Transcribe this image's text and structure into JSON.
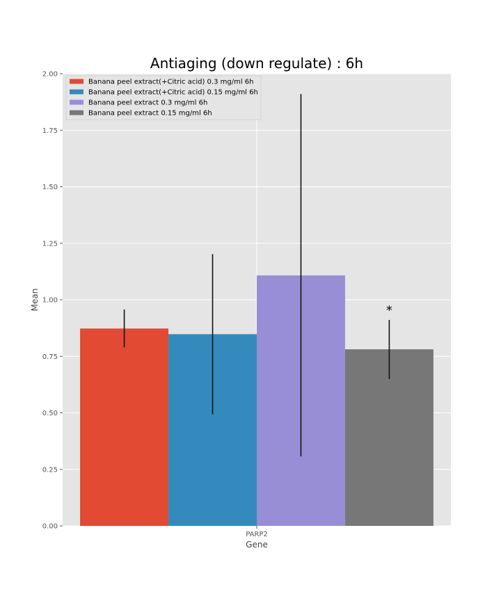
{
  "chart_data": {
    "type": "bar",
    "title": "Antiaging (down regulate) : 6h",
    "xlabel": "Gene",
    "ylabel": "Mean",
    "categories": [
      "PARP2"
    ],
    "ylim": [
      0,
      2.0
    ],
    "yticks": [
      "0.00",
      "0.25",
      "0.50",
      "0.75",
      "1.00",
      "1.25",
      "1.50",
      "1.75",
      "2.00"
    ],
    "grid": true,
    "legend_position": "top-left",
    "series": [
      {
        "name": "Banana peel extract(+Citric acid) 0.3 mg/ml 6h",
        "color": "#E24A33",
        "values": [
          0.873
        ],
        "err_low": [
          0.79
        ],
        "err_high": [
          0.957
        ],
        "annotation": ""
      },
      {
        "name": "Banana peel extract(+Citric acid) 0.15 mg/ml 6h",
        "color": "#348ABD",
        "values": [
          0.848
        ],
        "err_low": [
          0.494
        ],
        "err_high": [
          1.202
        ],
        "annotation": ""
      },
      {
        "name": "Banana peel extract 0.3 mg/ml 6h",
        "color": "#988ED5",
        "values": [
          1.108
        ],
        "err_low": [
          0.307
        ],
        "err_high": [
          1.91
        ],
        "annotation": ""
      },
      {
        "name": "Banana peel extract 0.15 mg/ml 6h",
        "color": "#777777",
        "values": [
          0.781
        ],
        "err_low": [
          0.65
        ],
        "err_high": [
          0.911
        ],
        "annotation": "*"
      }
    ]
  }
}
